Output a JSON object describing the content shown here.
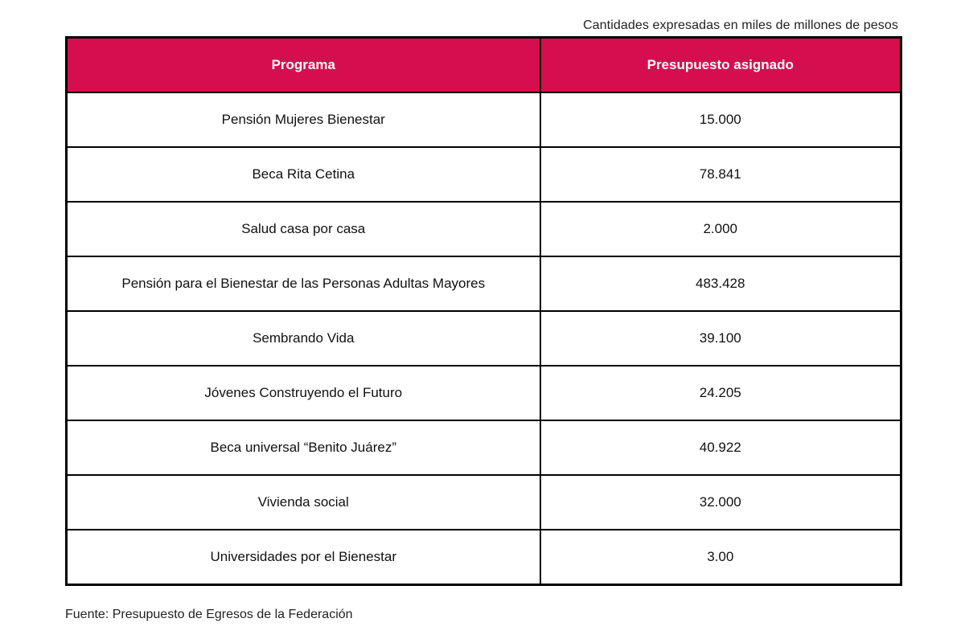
{
  "note": "Cantidades expresadas en miles de millones de pesos",
  "table": {
    "headers": [
      "Programa",
      "Presupuesto asignado"
    ],
    "rows": [
      [
        "Pensión Mujeres Bienestar",
        "15.000"
      ],
      [
        "Beca Rita Cetina",
        "78.841"
      ],
      [
        "Salud casa por casa",
        "2.000"
      ],
      [
        "Pensión para el Bienestar de las Personas Adultas Mayores",
        "483.428"
      ],
      [
        "Sembrando Vida",
        "39.100"
      ],
      [
        "Jóvenes Construyendo el Futuro",
        "24.205"
      ],
      [
        "Beca universal “Benito Juárez”",
        "40.922"
      ],
      [
        "Vivienda social",
        "32.000"
      ],
      [
        "Universidades por el Bienestar",
        "3.00"
      ]
    ]
  },
  "source": "Fuente: Presupuesto de Egresos de la Federación",
  "colors": {
    "header_bg": "#d50f4f",
    "header_text": "#ffffff",
    "border": "#000000"
  }
}
